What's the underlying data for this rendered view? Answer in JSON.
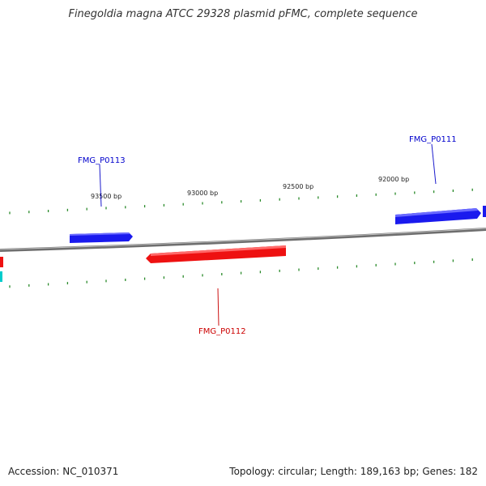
{
  "title": "Finegoldia magna ATCC 29328 plasmid pFMC, complete sequence",
  "footer": {
    "accession": "Accession: NC_010371",
    "summary": "Topology: circular; Length: 189,163 bp; Genes: 182"
  },
  "scale_labels": [
    "93500 bp",
    "93000 bp",
    "92500 bp",
    "92000 bp"
  ],
  "genes": [
    {
      "name": "FMG_P0111",
      "strand": "forward",
      "color": "#0000cc"
    },
    {
      "name": "FMG_P0113",
      "strand": "forward",
      "color": "#0000cc"
    },
    {
      "name": "FMG_P0112",
      "strand": "reverse",
      "color": "#cc0000"
    }
  ],
  "colors": {
    "forward": "#1a1aee",
    "reverse": "#ee1111",
    "backbone": "#8a8a8a",
    "ticks": "#2a8a2a",
    "edge_cyan": "#00cccc"
  }
}
